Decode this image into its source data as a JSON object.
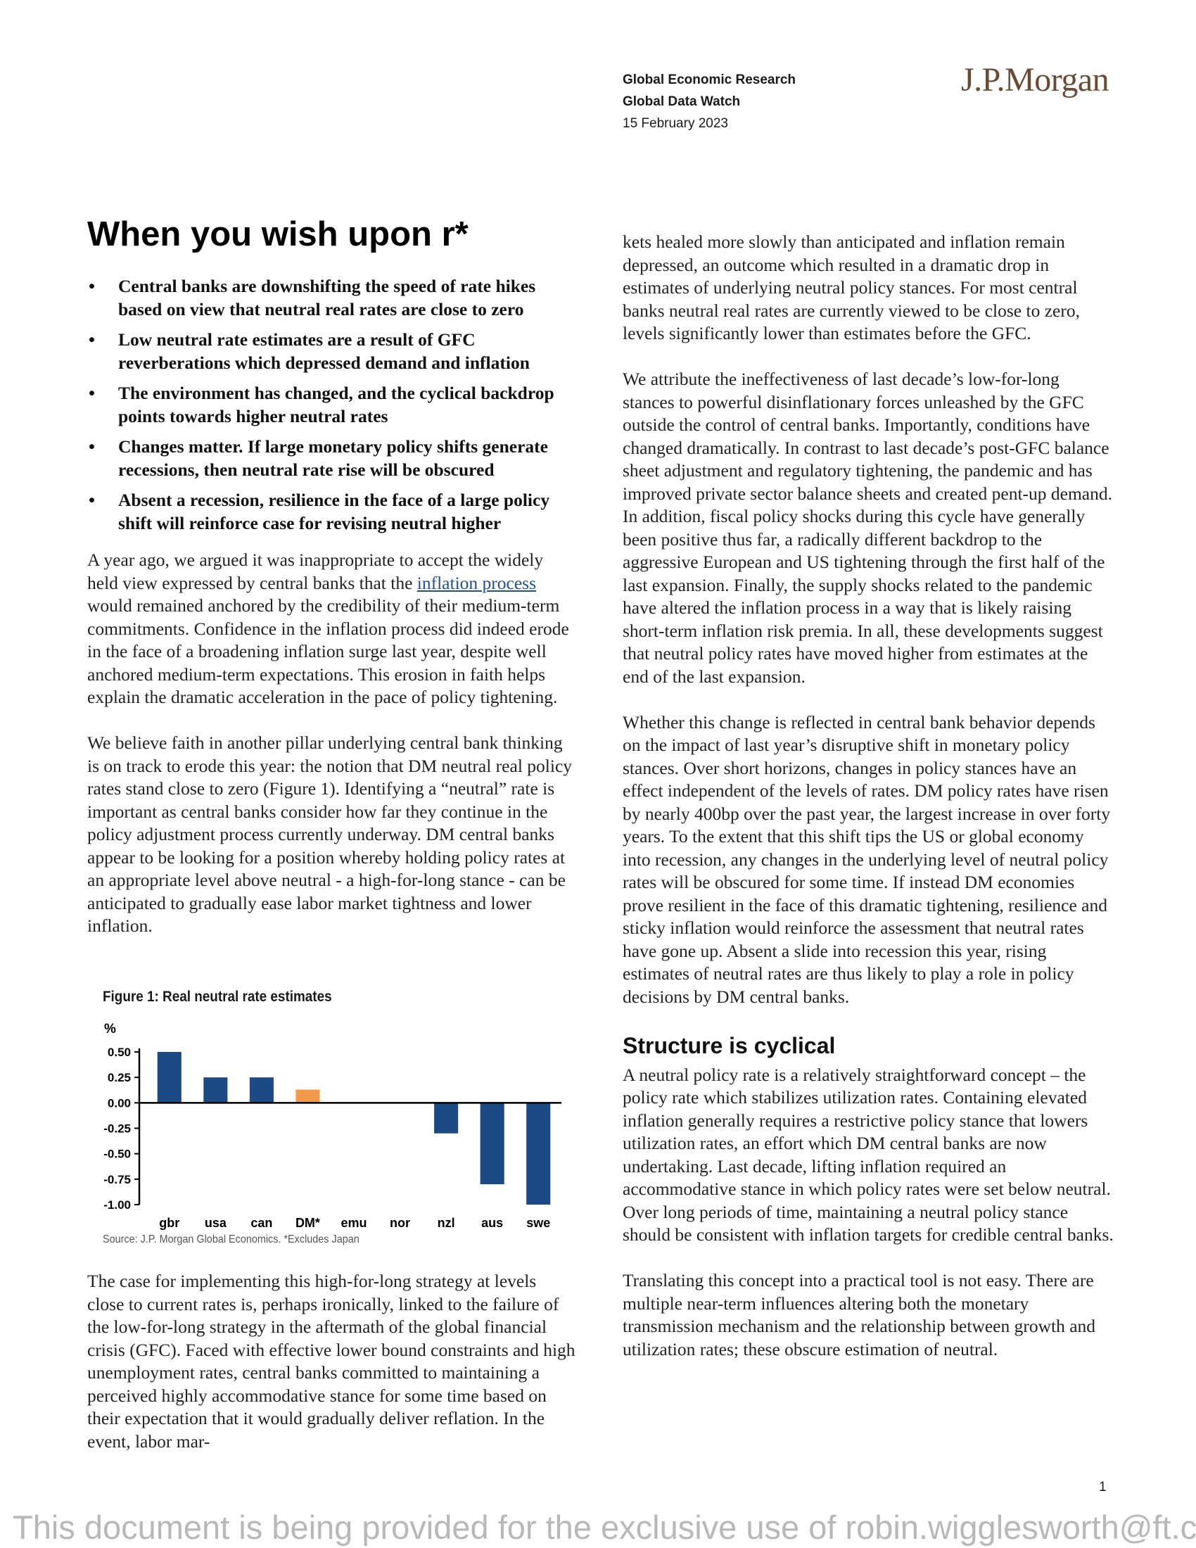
{
  "header": {
    "research": "Global Economic Research",
    "publication": "Global Data Watch",
    "date": "15 February 2023",
    "logo": "J.P.Morgan"
  },
  "article": {
    "title": "When you wish upon r*",
    "bullets": [
      "Central banks are downshifting the speed of rate hikes based on view that neutral real rates are close to zero",
      "Low neutral rate estimates are a result of GFC reverberations which depressed demand and inflation",
      "The environment has changed, and the cyclical backdrop points towards higher neutral rates",
      "Changes matter. If large monetary policy shifts generate recessions, then neutral rate rise will be obscured",
      "Absent a recession, resilience in the face of a large policy shift will reinforce case for revising neutral higher"
    ],
    "p1_before": "A year ago, we argued it was inappropriate to accept the widely held view expressed by central banks that the ",
    "p1_link": "inflation process",
    "p1_after": " would remained anchored by the credibility of their medium-term commitments. Confidence in the inflation process did indeed erode in the face of a broadening inflation surge last year, despite well anchored medium-term expectations. This erosion in faith helps explain the dramatic acceleration in the pace of policy tightening.",
    "p2": "We believe faith in another pillar underlying central bank thinking is on track to erode this year: the notion that DM neutral real policy rates stand close to zero (Figure 1). Identifying a “neutral” rate is important as central banks consider how far they continue in the policy adjustment process currently underway. DM central banks appear to be looking for a position whereby holding policy rates at an appropriate level above neutral - a high-for-long stance - can be anticipated to gradually ease labor market tightness and lower inflation.",
    "p3": "The case for implementing this high-for-long strategy at levels close to current rates is, perhaps ironically, linked to the failure of the low-for-long strategy in the aftermath of the global financial crisis (GFC). Faced with effective lower bound constraints and high unemployment rates, central banks committed to maintaining a perceived highly accommodative stance for some time based on their expectation that it would gradually deliver reflation. In the event, labor mar-",
    "p4": "kets healed more slowly than anticipated and inflation remain depressed, an outcome which resulted in a dramatic drop in estimates of underlying neutral policy stances. For most central banks neutral real rates are currently viewed to be close to zero, levels significantly lower than estimates before the GFC.",
    "p5": "We attribute the ineffectiveness of last decade’s low-for-long stances to powerful disinflationary forces unleashed by the GFC outside the control of central banks.  Importantly, conditions have changed dramatically. In contrast to last decade’s post-GFC balance sheet adjustment and regulatory tightening, the pandemic and has improved private sector balance sheets and created pent-up demand. In addition, fiscal policy shocks during this cycle have generally been positive thus far, a radically different backdrop to the aggressive European and US tightening through the first half of the last expansion. Finally, the supply shocks related to the pandemic have altered the inflation process in a way that is likely raising short-term inflation risk premia. In all, these developments suggest that neutral policy rates have moved higher from estimates at the end of the last expansion.",
    "p6": "Whether this change is reflected in central bank behavior depends on the impact of last year’s disruptive shift in monetary policy stances. Over short horizons, changes in policy stances have an effect independent of the levels of rates. DM policy rates have risen by nearly 400bp over the past year, the largest increase in over forty years. To the extent that this shift tips the US or global economy into recession, any changes in the underlying level of neutral policy rates will be obscured for some time. If instead DM economies prove resilient in the face of this dramatic tightening, resilience and sticky inflation would reinforce the assessment that neutral rates have gone up. Absent a slide into recession this year, rising estimates of neutral rates are thus likely to play a role in policy decisions by DM central banks.",
    "h2": "Structure is cyclical",
    "p7": "A neutral policy rate is a relatively straightforward concept – the policy rate which stabilizes utilization rates. Containing elevated inflation generally requires a restrictive policy stance that lowers utilization rates, an effort which DM central banks are now undertaking. Last decade, lifting inflation required an accommodative stance in which policy rates were set below neutral. Over long periods of time, maintaining a neutral policy stance should be consistent with inflation targets for credible central banks.",
    "p8": "Translating this concept into a practical tool is not easy. There are multiple near-term influences altering both the monetary transmission mechanism and the relationship between growth and utilization rates; these obscure estimation of neutral."
  },
  "figure": {
    "title": "Figure 1: Real neutral rate estimates",
    "source": "Source: J.P. Morgan Global Economics. *Excludes Japan"
  },
  "chart_data": {
    "type": "bar",
    "title": "Figure 1: Real neutral rate estimates",
    "ylabel": "%",
    "xlabel": "",
    "categories": [
      "gbr",
      "usa",
      "can",
      "DM*",
      "emu",
      "nor",
      "nzl",
      "aus",
      "swe"
    ],
    "values": [
      0.5,
      0.25,
      0.25,
      0.13,
      0,
      0,
      -0.3,
      -0.8,
      -1.0
    ],
    "highlight_category": "DM*",
    "ylim": [
      -1.0,
      0.5
    ],
    "yticks": [
      0.5,
      0.25,
      0,
      -0.25,
      -0.5,
      -0.75,
      -1.0
    ],
    "ytick_labels": [
      "0.50",
      "0.25",
      "0.00",
      "-0.25",
      "-0.50",
      "-0.75",
      "-1.00"
    ],
    "colors": {
      "bar": "#1b4a85",
      "highlight": "#f29a4a",
      "axis": "#000000"
    },
    "grid": false,
    "legend": "none"
  },
  "footer": {
    "page_number": "1",
    "watermark": "This document is being provided for the exclusive use of robin.wigglesworth@ft.com."
  }
}
